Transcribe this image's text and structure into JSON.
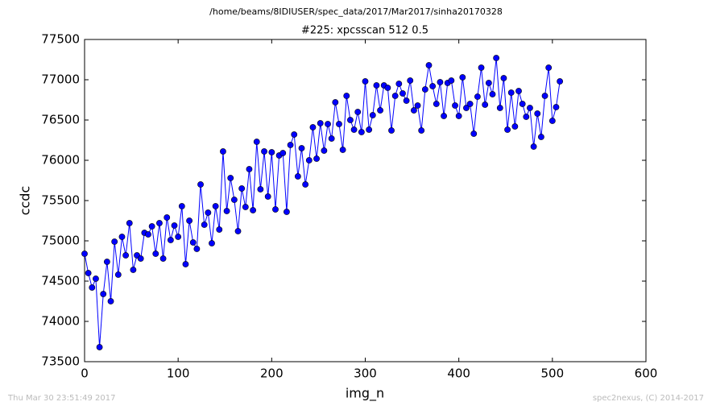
{
  "chart_data": {
    "type": "line",
    "title": "/home/beams/8IDIUSER/spec_data/2017/Mar2017/sinha20170328",
    "subtitle": "#225: xpcsscan 512 0.5",
    "x_label": "img_n",
    "y_label": "ccdc",
    "footer_left": "Thu Mar 30 23:51:49 2017",
    "footer_right": "spec2nexus, (C) 2014-2017",
    "xlim": [
      0,
      600
    ],
    "xticks": [
      0,
      100,
      200,
      300,
      400,
      500,
      600
    ],
    "ylim": [
      73500,
      77500
    ],
    "yticks": [
      73500,
      74000,
      74500,
      75000,
      75500,
      76000,
      76500,
      77000,
      77500
    ],
    "x": [
      0,
      4,
      8,
      12,
      16,
      20,
      24,
      28,
      32,
      36,
      40,
      44,
      48,
      52,
      56,
      60,
      64,
      68,
      72,
      76,
      80,
      84,
      88,
      92,
      96,
      100,
      104,
      108,
      112,
      116,
      120,
      124,
      128,
      132,
      136,
      140,
      144,
      148,
      152,
      156,
      160,
      164,
      168,
      172,
      176,
      180,
      184,
      188,
      192,
      196,
      200,
      204,
      208,
      212,
      216,
      220,
      224,
      228,
      232,
      236,
      240,
      244,
      248,
      252,
      256,
      260,
      264,
      268,
      272,
      276,
      280,
      284,
      288,
      292,
      296,
      300,
      304,
      308,
      312,
      316,
      320,
      324,
      328,
      332,
      336,
      340,
      344,
      348,
      352,
      356,
      360,
      364,
      368,
      372,
      376,
      380,
      384,
      388,
      392,
      396,
      400,
      404,
      408,
      412,
      416,
      420,
      424,
      428,
      432,
      436,
      440,
      444,
      448,
      452,
      456,
      460,
      464,
      468,
      472,
      476,
      480,
      484,
      488,
      492,
      496,
      500,
      504,
      508
    ],
    "series": [
      {
        "color": "#0000ff",
        "values": [
          74840,
          74600,
          74420,
          74530,
          73680,
          74340,
          74740,
          74250,
          74990,
          74580,
          75050,
          74820,
          75220,
          74640,
          74820,
          74780,
          75100,
          75080,
          75180,
          74840,
          75220,
          74780,
          75290,
          75010,
          75190,
          75050,
          75430,
          74710,
          75250,
          74980,
          74900,
          75700,
          75200,
          75350,
          74970,
          75430,
          75140,
          76110,
          75370,
          75780,
          75510,
          75120,
          75650,
          75420,
          75890,
          75380,
          76230,
          75640,
          76110,
          75550,
          76100,
          75390,
          76060,
          76090,
          75360,
          76190,
          76320,
          75800,
          76150,
          75700,
          76000,
          76410,
          76020,
          76460,
          76120,
          76450,
          76270,
          76720,
          76450,
          76130,
          76800,
          76500,
          76380,
          76600,
          76350,
          76980,
          76380,
          76560,
          76930,
          76620,
          76930,
          76900,
          76370,
          76800,
          76950,
          76830,
          76740,
          76990,
          76620,
          76680,
          76370,
          76880,
          77180,
          76920,
          76700,
          76970,
          76550,
          76960,
          76990,
          76680,
          76550,
          77030,
          76650,
          76700,
          76330,
          76790,
          77150,
          76690,
          76960,
          76820,
          77270,
          76650,
          77020,
          76380,
          76840,
          76420,
          76860,
          76700,
          76540,
          76650,
          76170,
          76580,
          76290,
          76800,
          77150,
          76490,
          76660,
          76980
        ]
      }
    ]
  }
}
